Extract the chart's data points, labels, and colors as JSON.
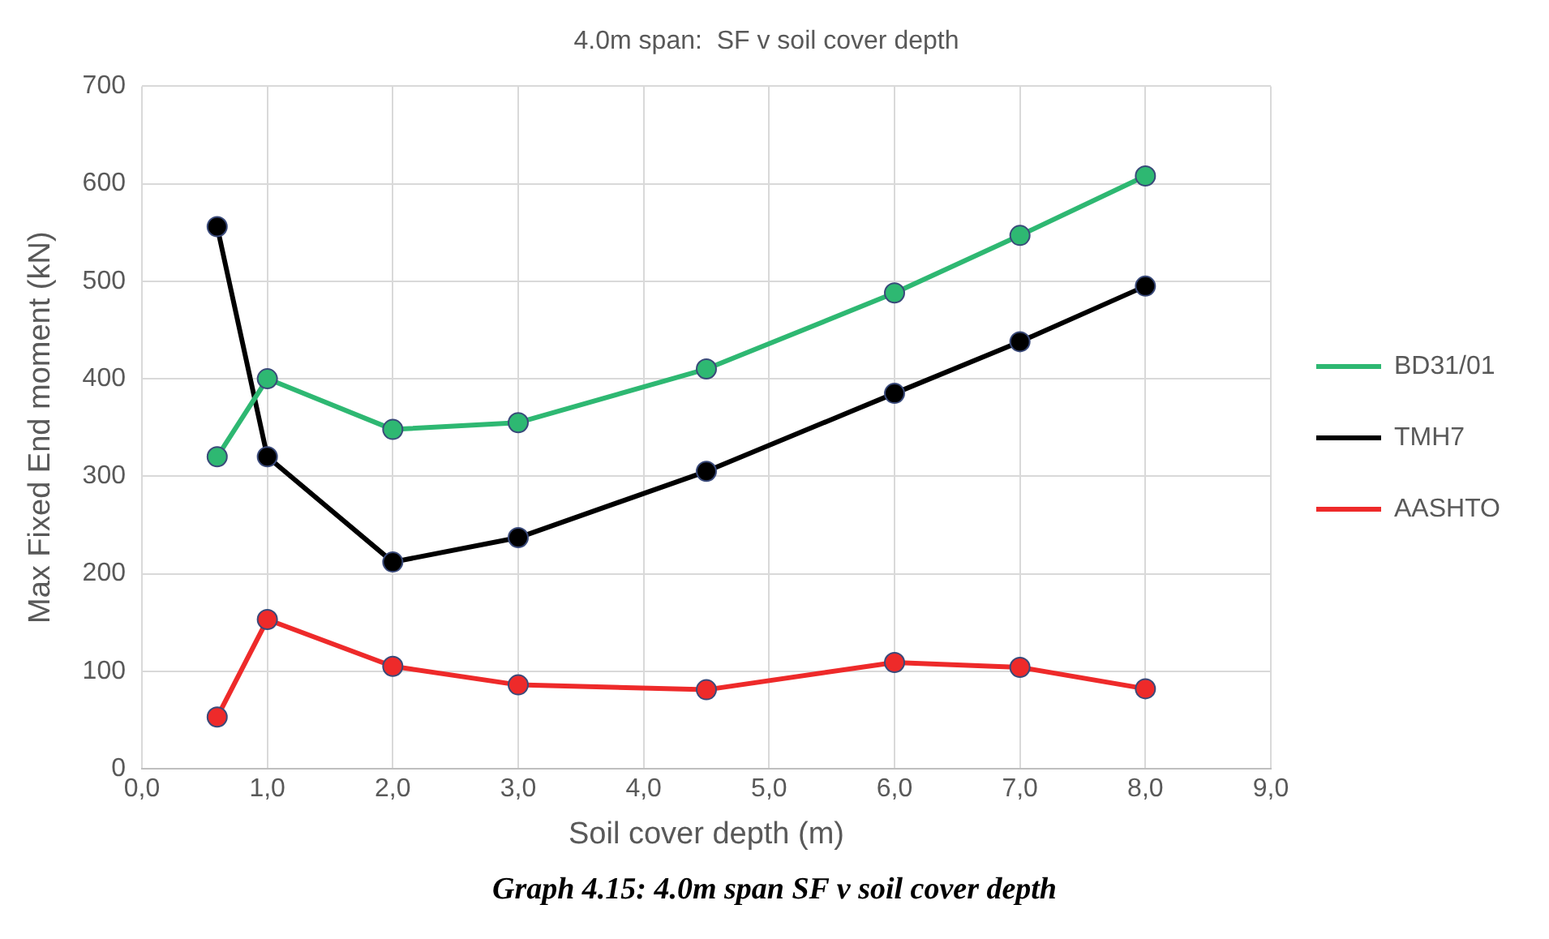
{
  "chart_data": {
    "type": "line",
    "title": "4.0m span:  SF v soil cover depth",
    "xlabel": "Soil cover depth (m)",
    "ylabel": "Max Fixed End moment (kN)",
    "x": [
      0.6,
      1,
      2,
      3,
      4.5,
      6,
      7,
      8
    ],
    "series": [
      {
        "name": "BD31/01",
        "color": "#2eb872",
        "values": [
          320,
          400,
          348,
          355,
          410,
          488,
          547,
          608
        ]
      },
      {
        "name": "TMH7",
        "color": "#000000",
        "values": [
          556,
          320,
          212,
          237,
          305,
          385,
          438,
          495
        ]
      },
      {
        "name": "AASHTO",
        "color": "#ee2a2a",
        "values": [
          53,
          153,
          105,
          86,
          81,
          109,
          104,
          82
        ]
      }
    ],
    "xlim": [
      0,
      9
    ],
    "xticks": [
      {
        "value": 0,
        "label": "0,0"
      },
      {
        "value": 1,
        "label": "1,0"
      },
      {
        "value": 2,
        "label": "2,0"
      },
      {
        "value": 3,
        "label": "3,0"
      },
      {
        "value": 4,
        "label": "4,0"
      },
      {
        "value": 5,
        "label": "5,0"
      },
      {
        "value": 6,
        "label": "6,0"
      },
      {
        "value": 7,
        "label": "7,0"
      },
      {
        "value": 8,
        "label": "8,0"
      },
      {
        "value": 9,
        "label": "9,0"
      }
    ],
    "ylim": [
      0,
      700
    ],
    "yticks": [
      0,
      100,
      200,
      300,
      400,
      500,
      600,
      700
    ],
    "grid": true,
    "legend": "right",
    "marker": "circle",
    "line_style": "solid",
    "annotations": [
      "Graph 4.15: 4.0m span SF v soil cover depth"
    ]
  }
}
